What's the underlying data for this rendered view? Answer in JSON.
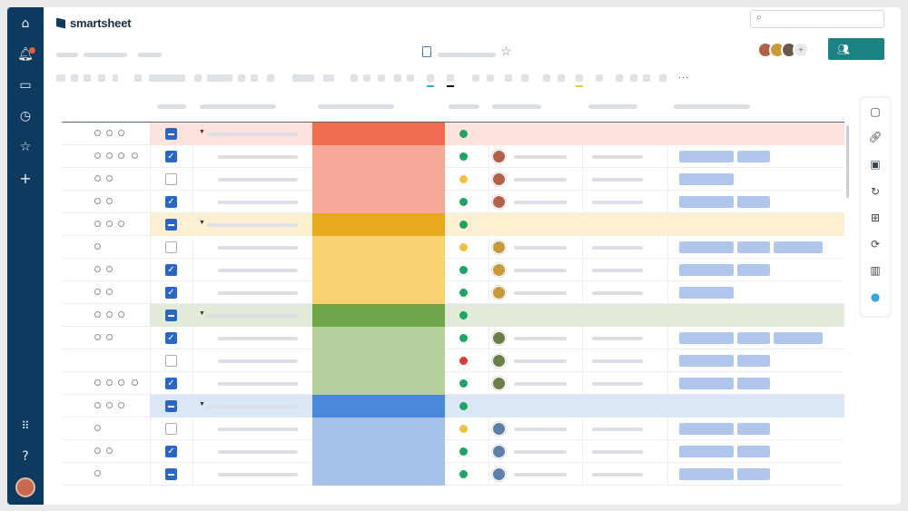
{
  "app": {
    "brand_name": "smartsheet",
    "accent_color": "#1b8383",
    "nav_color": "#0f3a5f"
  },
  "left_nav": {
    "icons": [
      "home-icon",
      "bell-icon",
      "folder-icon",
      "clock-icon",
      "star-icon",
      "plus-icon",
      "apps-grid-icon",
      "help-icon"
    ],
    "notification_badge": true
  },
  "header": {
    "search": {
      "placeholder": ""
    },
    "share_icon": "people-icon"
  },
  "toolbar": {
    "more_label": "..."
  },
  "groups": [
    {
      "color": "#ef6c4f",
      "tint": "#f7a898",
      "row_tint": "#fde2dd"
    },
    {
      "color": "#e7aa1e",
      "tint": "#f8d171",
      "row_tint": "#fcefd2"
    },
    {
      "color": "#6fa64a",
      "tint": "#b6d09d",
      "row_tint": "#e2ead9"
    },
    {
      "color": "#4a88d9",
      "tint": "#a6c2e8",
      "row_tint": "#dbe6f6"
    }
  ],
  "rows": [
    {
      "type": "parent",
      "group": 0,
      "checkbox": "minus",
      "dot": "green",
      "icons": 3,
      "tags": 0,
      "person": false
    },
    {
      "type": "child",
      "group": 0,
      "checkbox": "check",
      "dot": "green",
      "icons": 4,
      "tags": 2,
      "person": true
    },
    {
      "type": "child",
      "group": 0,
      "checkbox": "empty",
      "dot": "yellow",
      "icons": 2,
      "tags": 1,
      "person": true
    },
    {
      "type": "child",
      "group": 0,
      "checkbox": "check",
      "dot": "green",
      "icons": 2,
      "tags": 2,
      "person": true
    },
    {
      "type": "parent",
      "group": 1,
      "checkbox": "minus",
      "dot": "green",
      "icons": 3,
      "tags": 0,
      "person": false
    },
    {
      "type": "child",
      "group": 1,
      "checkbox": "empty",
      "dot": "yellow",
      "icons": 1,
      "tags": 3,
      "person": true
    },
    {
      "type": "child",
      "group": 1,
      "checkbox": "check",
      "dot": "green",
      "icons": 2,
      "tags": 2,
      "person": true
    },
    {
      "type": "child",
      "group": 1,
      "checkbox": "check",
      "dot": "green",
      "icons": 2,
      "tags": 1,
      "person": true
    },
    {
      "type": "parent",
      "group": 2,
      "checkbox": "minus",
      "dot": "green",
      "icons": 3,
      "tags": 0,
      "person": false
    },
    {
      "type": "child",
      "group": 2,
      "checkbox": "check",
      "dot": "green",
      "icons": 2,
      "tags": 3,
      "person": true
    },
    {
      "type": "child",
      "group": 2,
      "checkbox": "empty",
      "dot": "red",
      "icons": 0,
      "tags": 2,
      "person": true
    },
    {
      "type": "child",
      "group": 2,
      "checkbox": "check",
      "dot": "green",
      "icons": 4,
      "tags": 2,
      "person": true
    },
    {
      "type": "parent",
      "group": 3,
      "checkbox": "minus",
      "dot": "green",
      "icons": 3,
      "tags": 0,
      "person": false
    },
    {
      "type": "child",
      "group": 3,
      "checkbox": "empty",
      "dot": "yellow",
      "icons": 1,
      "tags": 2,
      "person": true
    },
    {
      "type": "child",
      "group": 3,
      "checkbox": "check",
      "dot": "green",
      "icons": 2,
      "tags": 2,
      "person": true
    },
    {
      "type": "child",
      "group": 3,
      "checkbox": "minus",
      "dot": "green",
      "icons": 1,
      "tags": 2,
      "person": true
    }
  ],
  "dot_colors": {
    "green": "#1fa463",
    "yellow": "#f2c043",
    "red": "#d93b3b"
  },
  "right_panel": {
    "icons": [
      "comment-icon",
      "attachment-icon",
      "proofing-icon",
      "activity-icon",
      "publish-icon",
      "update-requests-icon",
      "summary-icon",
      "lightbulb-icon"
    ]
  }
}
